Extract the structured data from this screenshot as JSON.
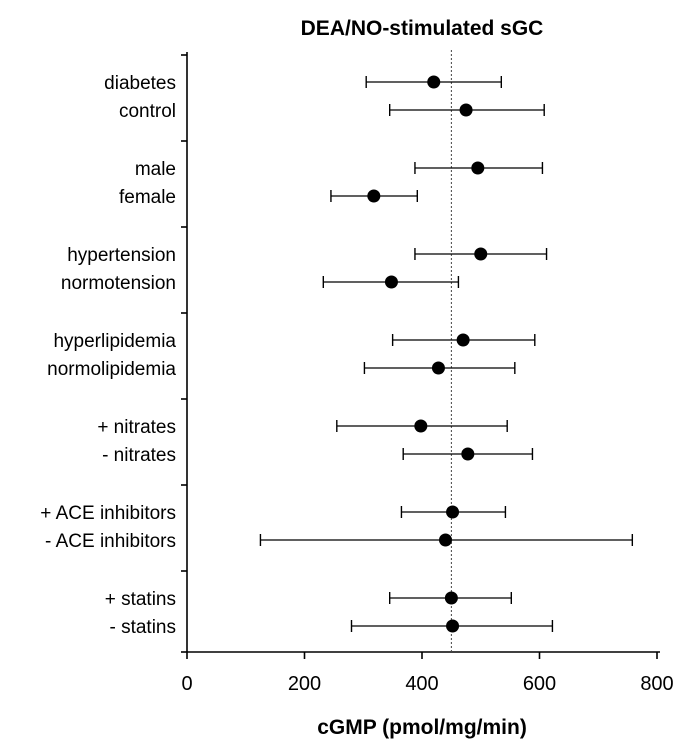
{
  "chart_data": {
    "type": "scatter",
    "title": "DEA/NO-stimulated sGC",
    "xlabel": "cGMP  (pmol/mg/min)",
    "ylabel": "",
    "xlim": [
      0,
      800
    ],
    "xticks": [
      "0",
      "200",
      "400",
      "600",
      "800"
    ],
    "reference_line_x": 450,
    "grid": false,
    "rows": [
      {
        "label": "diabetes",
        "mean": 420,
        "low": 305,
        "high": 535
      },
      {
        "label": "control",
        "mean": 475,
        "low": 345,
        "high": 608
      },
      {
        "label": "male",
        "mean": 495,
        "low": 388,
        "high": 605
      },
      {
        "label": "female",
        "mean": 318,
        "low": 245,
        "high": 392
      },
      {
        "label": "hypertension",
        "mean": 500,
        "low": 388,
        "high": 612
      },
      {
        "label": "normotension",
        "mean": 348,
        "low": 232,
        "high": 462
      },
      {
        "label": "hyperlipidemia",
        "mean": 470,
        "low": 350,
        "high": 592
      },
      {
        "label": "normolipidemia",
        "mean": 428,
        "low": 302,
        "high": 558
      },
      {
        "label": "+ nitrates",
        "mean": 398,
        "low": 255,
        "high": 545
      },
      {
        "label": "- nitrates",
        "mean": 478,
        "low": 368,
        "high": 588
      },
      {
        "label": "+ ACE inhibitors",
        "mean": 452,
        "low": 365,
        "high": 542
      },
      {
        "label": "- ACE inhibitors",
        "mean": 440,
        "low": 125,
        "high": 758
      },
      {
        "label": "+ statins",
        "mean": 450,
        "low": 345,
        "high": 552
      },
      {
        "label": "- statins",
        "mean": 452,
        "low": 280,
        "high": 622
      }
    ]
  }
}
